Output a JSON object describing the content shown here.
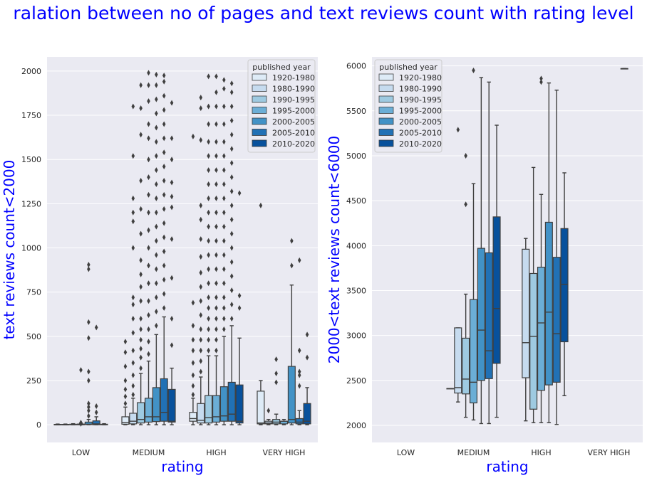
{
  "figure": {
    "title": "ralation between no of pages and text reviews count with rating level"
  },
  "colors": {
    "axes_bg": "#EAEAF2",
    "grid": "#FFFFFF",
    "label": "#0000FF",
    "tick_text": "#262626",
    "box_edge": "#3F3F3F",
    "palette": [
      "#DEEBF7",
      "#C6DBEF",
      "#9ECAE1",
      "#6BAED6",
      "#4292C6",
      "#2171B5",
      "#08519C"
    ]
  },
  "chart_data": [
    {
      "type": "box",
      "xlabel": "rating",
      "ylabel": "text reviews count<2000",
      "categories": [
        "LOW",
        "MEDIUM",
        "HIGH",
        "VERY HIGH"
      ],
      "ylim": [
        -100,
        2080
      ],
      "yticks": [
        0,
        250,
        500,
        750,
        1000,
        1250,
        1500,
        1750,
        2000
      ],
      "grid": true,
      "legend": {
        "title": "published year",
        "position": "top-right",
        "entries": [
          "1920-1980",
          "1980-1990",
          "1990-1995",
          "1995-2000",
          "2000-2005",
          "2005-2010",
          "2010-2020"
        ]
      },
      "boxes": [
        {
          "c": 0,
          "h": 0,
          "q1": 0,
          "med": 0,
          "q3": 2,
          "lo": 0,
          "hi": 4,
          "fl": []
        },
        {
          "c": 0,
          "h": 1,
          "q1": 0,
          "med": 0,
          "q3": 2,
          "lo": 0,
          "hi": 4,
          "fl": []
        },
        {
          "c": 0,
          "h": 2,
          "q1": 0,
          "med": 1,
          "q3": 3,
          "lo": 0,
          "hi": 6,
          "fl": []
        },
        {
          "c": 0,
          "h": 3,
          "q1": 0,
          "med": 1,
          "q3": 4,
          "lo": 0,
          "hi": 8,
          "fl": [
            5,
            12,
            310
          ]
        },
        {
          "c": 0,
          "h": 4,
          "q1": 1,
          "med": 3,
          "q3": 15,
          "lo": 0,
          "hi": 30,
          "fl": [
            50,
            80,
            100,
            120,
            250,
            300,
            490,
            580,
            880,
            905
          ]
        },
        {
          "c": 0,
          "h": 5,
          "q1": 0,
          "med": 5,
          "q3": 22,
          "lo": 0,
          "hi": 45,
          "fl": [
            70,
            105,
            550
          ]
        },
        {
          "c": 0,
          "h": 6,
          "q1": 0,
          "med": 1,
          "q3": 3,
          "lo": 0,
          "hi": 6,
          "fl": []
        },
        {
          "c": 1,
          "h": 0,
          "q1": 3,
          "med": 12,
          "q3": 45,
          "lo": 0,
          "hi": 100,
          "fl": [
            120,
            160,
            200,
            250,
            330,
            410,
            470
          ]
        },
        {
          "c": 1,
          "h": 1,
          "q1": 5,
          "med": 20,
          "q3": 65,
          "lo": 0,
          "hi": 150,
          "fl": [
            170,
            220,
            280,
            350,
            420,
            520,
            600,
            680,
            720,
            1000,
            1150,
            1200,
            1280,
            1520,
            1800
          ]
        },
        {
          "c": 1,
          "h": 2,
          "q1": 10,
          "med": 30,
          "q3": 125,
          "lo": 0,
          "hi": 290,
          "fl": [
            320,
            380,
            430,
            480,
            540,
            600,
            700,
            780,
            850,
            930,
            1080,
            1220,
            1380,
            1640,
            1790,
            1920
          ]
        },
        {
          "c": 1,
          "h": 3,
          "q1": 15,
          "med": 45,
          "q3": 150,
          "lo": 0,
          "hi": 360,
          "fl": [
            400,
            470,
            540,
            620,
            700,
            800,
            900,
            1000,
            1100,
            1200,
            1300,
            1400,
            1500,
            1620,
            1700,
            1830,
            1920,
            1990
          ]
        },
        {
          "c": 1,
          "h": 4,
          "q1": 18,
          "med": 45,
          "q3": 210,
          "lo": 0,
          "hi": 510,
          "fl": [
            560,
            640,
            720,
            800,
            880,
            960,
            1040,
            1120,
            1200,
            1280,
            1360,
            1440,
            1520,
            1600,
            1680,
            1760,
            1840,
            1920,
            1980
          ]
        },
        {
          "c": 1,
          "h": 5,
          "q1": 20,
          "med": 70,
          "q3": 260,
          "lo": 0,
          "hi": 610,
          "fl": [
            660,
            740,
            820,
            900,
            980,
            1060,
            1140,
            1220,
            1300,
            1380,
            1460,
            1540,
            1620,
            1700,
            1780,
            1860,
            1940,
            1975
          ]
        },
        {
          "c": 1,
          "h": 6,
          "q1": 15,
          "med": 20,
          "q3": 200,
          "lo": 0,
          "hi": 320,
          "fl": [
            450,
            600,
            830,
            1050,
            1230,
            1290,
            1370,
            1500,
            1620,
            1820
          ]
        },
        {
          "c": 2,
          "h": 0,
          "q1": 20,
          "med": 35,
          "q3": 70,
          "lo": 0,
          "hi": 150,
          "fl": [
            170,
            220,
            280,
            350,
            420,
            480,
            560,
            690,
            1630
          ]
        },
        {
          "c": 2,
          "h": 1,
          "q1": 10,
          "med": 25,
          "q3": 120,
          "lo": 0,
          "hi": 270,
          "fl": [
            300,
            360,
            420,
            480,
            540,
            620,
            700,
            780,
            860,
            950,
            1050,
            1160,
            1240,
            1610,
            1790,
            1850
          ]
        },
        {
          "c": 2,
          "h": 2,
          "q1": 10,
          "med": 40,
          "q3": 165,
          "lo": 0,
          "hi": 390,
          "fl": [
            420,
            480,
            540,
            600,
            660,
            720,
            800,
            880,
            960,
            1040,
            1120,
            1200,
            1280,
            1360,
            1440,
            1520,
            1600,
            1700,
            1800,
            1970
          ]
        },
        {
          "c": 2,
          "h": 3,
          "q1": 15,
          "med": 45,
          "q3": 165,
          "lo": 0,
          "hi": 390,
          "fl": [
            420,
            480,
            540,
            600,
            660,
            720,
            800,
            880,
            960,
            1040,
            1120,
            1200,
            1280,
            1360,
            1440,
            1520,
            1600,
            1700,
            1800,
            1880,
            1970
          ]
        },
        {
          "c": 2,
          "h": 4,
          "q1": 20,
          "med": 50,
          "q3": 215,
          "lo": 0,
          "hi": 500,
          "fl": [
            540,
            600,
            660,
            720,
            800,
            880,
            960,
            1040,
            1120,
            1200,
            1280,
            1360,
            1440,
            1520,
            1600,
            1700,
            1800,
            1900,
            1950
          ]
        },
        {
          "c": 2,
          "h": 5,
          "q1": 20,
          "med": 60,
          "q3": 240,
          "lo": 0,
          "hi": 560,
          "fl": [
            600,
            680,
            760,
            840,
            920,
            1000,
            1080,
            1160,
            1240,
            1320,
            1400,
            1480,
            1560,
            1640,
            1720,
            1800,
            1880,
            1930
          ]
        },
        {
          "c": 2,
          "h": 6,
          "q1": 10,
          "med": 20,
          "q3": 225,
          "lo": 0,
          "hi": 490,
          "fl": [
            660,
            730,
            1310
          ]
        },
        {
          "c": 3,
          "h": 0,
          "q1": 5,
          "med": 10,
          "q3": 190,
          "lo": 0,
          "hi": 250,
          "fl": [
            1240
          ]
        },
        {
          "c": 3,
          "h": 1,
          "q1": 5,
          "med": 10,
          "q3": 20,
          "lo": 0,
          "hi": 30,
          "fl": [
            80
          ]
        },
        {
          "c": 3,
          "h": 2,
          "q1": 5,
          "med": 15,
          "q3": 30,
          "lo": 0,
          "hi": 60,
          "fl": [
            240,
            290,
            370
          ]
        },
        {
          "c": 3,
          "h": 3,
          "q1": 5,
          "med": 20,
          "q3": 20,
          "lo": 0,
          "hi": 30,
          "fl": []
        },
        {
          "c": 3,
          "h": 4,
          "q1": 10,
          "med": 30,
          "q3": 330,
          "lo": 0,
          "hi": 790,
          "fl": [
            900,
            1040
          ]
        },
        {
          "c": 3,
          "h": 5,
          "q1": 5,
          "med": 15,
          "q3": 35,
          "lo": 0,
          "hi": 80,
          "fl": [
            220,
            280,
            300,
            420,
            930
          ]
        },
        {
          "c": 3,
          "h": 6,
          "q1": 5,
          "med": 20,
          "q3": 120,
          "lo": 0,
          "hi": 210,
          "fl": [
            380,
            510
          ]
        }
      ]
    },
    {
      "type": "box",
      "xlabel": "rating",
      "ylabel": "2000<text reviews count<6000",
      "categories": [
        "LOW",
        "MEDIUM",
        "HIGH",
        "VERY HIGH"
      ],
      "ylim": [
        1810,
        6100
      ],
      "yticks": [
        2000,
        2500,
        3000,
        3500,
        4000,
        4500,
        5000,
        5500,
        6000
      ],
      "grid": true,
      "legend": {
        "title": "published year",
        "position": "top-left",
        "entries": [
          "1920-1980",
          "1980-1990",
          "1990-1995",
          "1995-2000",
          "2000-2005",
          "2005-2010",
          "2010-2020"
        ]
      },
      "boxes": [
        {
          "c": 1,
          "h": 0,
          "q1": 2410,
          "med": 2410,
          "q3": 2410,
          "lo": 2410,
          "hi": 2410,
          "fl": []
        },
        {
          "c": 1,
          "h": 1,
          "q1": 2360,
          "med": 2420,
          "q3": 3085,
          "lo": 2260,
          "hi": 3085,
          "fl": [
            5290
          ]
        },
        {
          "c": 1,
          "h": 2,
          "q1": 2350,
          "med": 2515,
          "q3": 2970,
          "lo": 2090,
          "hi": 3460,
          "fl": [
            4460,
            5000
          ]
        },
        {
          "c": 1,
          "h": 3,
          "q1": 2250,
          "med": 2480,
          "q3": 3400,
          "lo": 2060,
          "hi": 4690,
          "fl": [
            5950
          ]
        },
        {
          "c": 1,
          "h": 4,
          "q1": 2500,
          "med": 3060,
          "q3": 3970,
          "lo": 2020,
          "hi": 5870,
          "fl": []
        },
        {
          "c": 1,
          "h": 5,
          "q1": 2520,
          "med": 2830,
          "q3": 3920,
          "lo": 2020,
          "hi": 5820,
          "fl": []
        },
        {
          "c": 1,
          "h": 6,
          "q1": 2690,
          "med": 3300,
          "q3": 4320,
          "lo": 2090,
          "hi": 5340,
          "fl": []
        },
        {
          "c": 2,
          "h": 1,
          "q1": 2530,
          "med": 2920,
          "q3": 3960,
          "lo": 2050,
          "hi": 4080,
          "fl": []
        },
        {
          "c": 2,
          "h": 2,
          "q1": 2180,
          "med": 2990,
          "q3": 3690,
          "lo": 2030,
          "hi": 4870,
          "fl": []
        },
        {
          "c": 2,
          "h": 3,
          "q1": 2390,
          "med": 3140,
          "q3": 3760,
          "lo": 2030,
          "hi": 4570,
          "fl": [
            5820,
            5860
          ]
        },
        {
          "c": 2,
          "h": 4,
          "q1": 2450,
          "med": 3260,
          "q3": 4260,
          "lo": 2030,
          "hi": 5810,
          "fl": []
        },
        {
          "c": 2,
          "h": 5,
          "q1": 2480,
          "med": 3020,
          "q3": 3870,
          "lo": 2010,
          "hi": 5730,
          "fl": []
        },
        {
          "c": 2,
          "h": 6,
          "q1": 2930,
          "med": 3570,
          "q3": 4190,
          "lo": 2330,
          "hi": 4810,
          "fl": []
        },
        {
          "c": 3,
          "h": 5,
          "q1": 5970,
          "med": 5970,
          "q3": 5970,
          "lo": 5970,
          "hi": 5970,
          "fl": []
        }
      ]
    }
  ]
}
